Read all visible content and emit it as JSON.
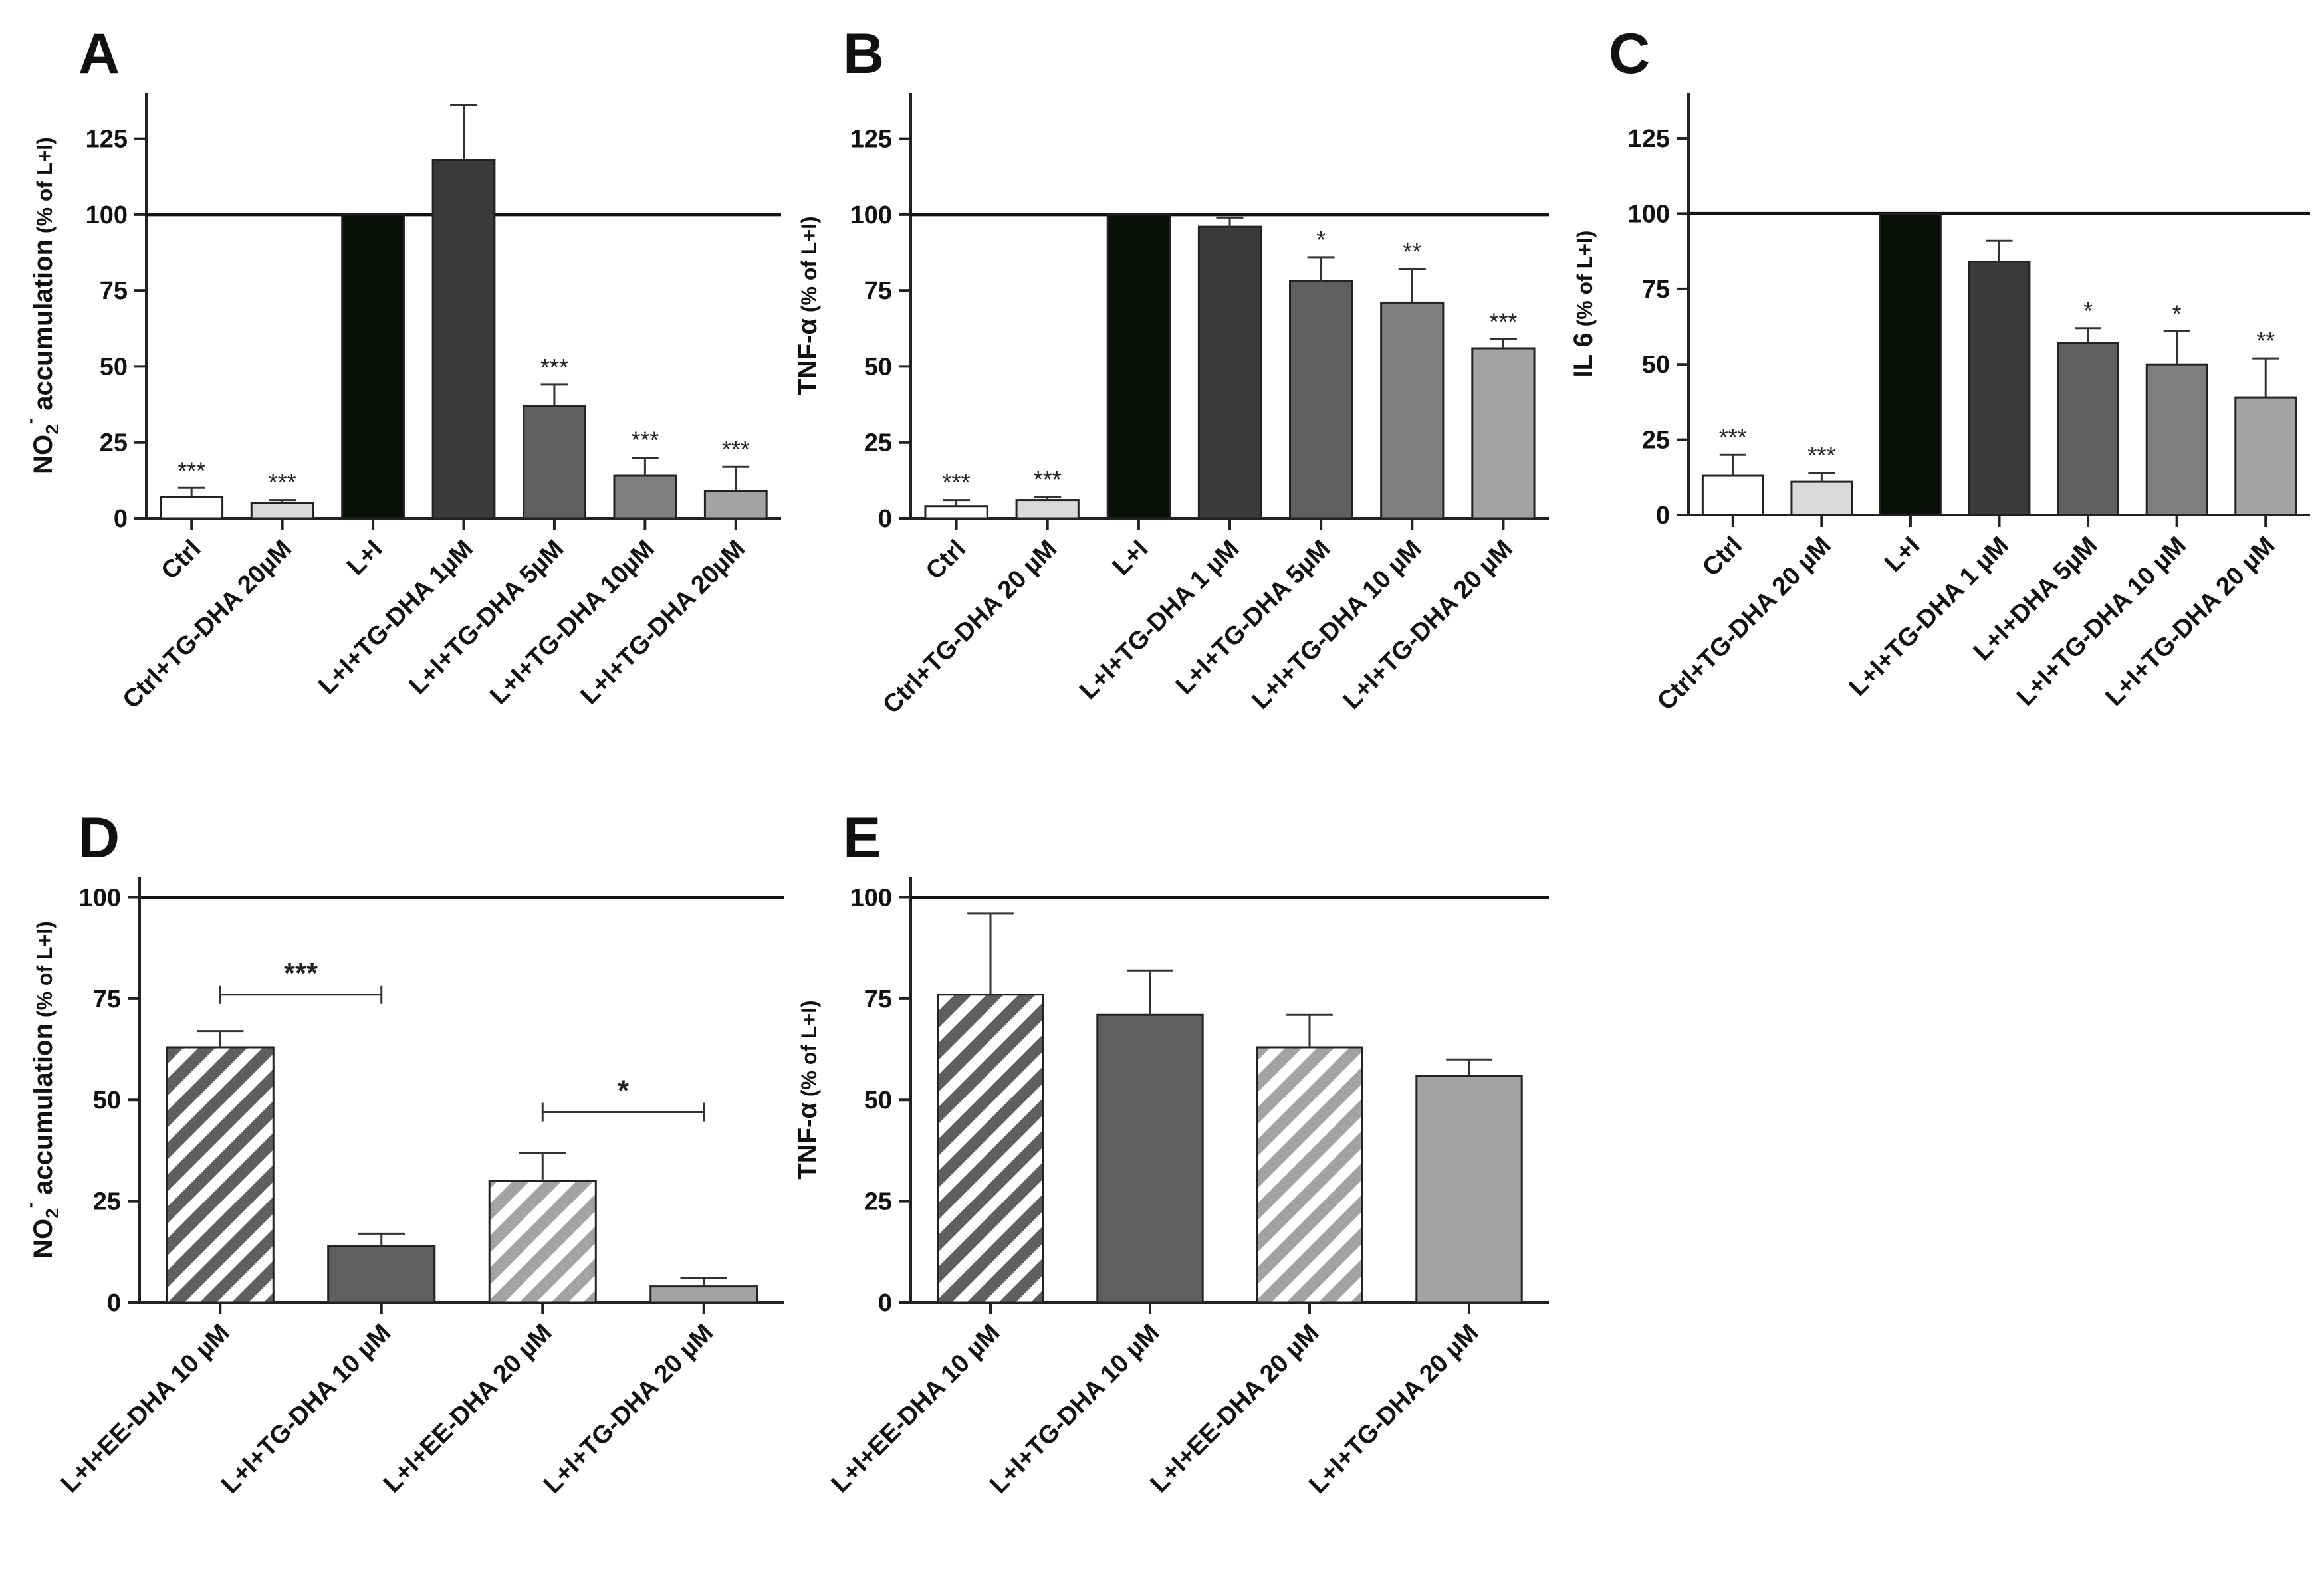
{
  "figure": {
    "palette": {
      "white": "#ffffff",
      "light": "#d9d9d9",
      "black": "#0a0f0a",
      "dark": "#3b3b3b",
      "mid": "#5f5f5f",
      "midlight": "#7f7f7f",
      "lightgray": "#a3a3a3",
      "ee": "#ffffff",
      "hatch_dark": "#5f5f5f",
      "hatch_light": "#a3a3a3",
      "tg_dark": "#5f5f5f",
      "tg_light": "#a3a3a3"
    }
  },
  "chart_data": [
    {
      "id": "A",
      "panel_label": "A",
      "type": "bar",
      "ylabel_main": "NO",
      "ylabel_sub": "2",
      "ylabel_sup": "-",
      "ylabel_rest": " accumulation",
      "ylabel_unit": " (% of L+I)",
      "ylim": [
        0,
        140
      ],
      "yticks": [
        0,
        25,
        50,
        75,
        100,
        125
      ],
      "reference_line": 100,
      "categories": [
        "Ctrl",
        "Ctrl+TG-DHA 20µM",
        "L+I",
        "L+I+TG-DHA 1µM",
        "L+I+TG-DHA 5µM",
        "L+I+TG-DHA 10µM",
        "L+I+TG-DHA 20µM"
      ],
      "values": [
        7,
        5,
        100,
        118,
        37,
        14,
        9
      ],
      "errors": [
        3,
        1,
        0,
        18,
        7,
        6,
        8
      ],
      "fills": [
        "white",
        "light",
        "black",
        "dark",
        "mid",
        "midlight",
        "lightgray"
      ],
      "significance": [
        "***",
        "***",
        "",
        "",
        "***",
        "***",
        "***"
      ]
    },
    {
      "id": "B",
      "panel_label": "B",
      "type": "bar",
      "ylabel_main": "TNF-α",
      "ylabel_unit": "  (% of L+I)",
      "ylim": [
        0,
        140
      ],
      "yticks": [
        0,
        25,
        50,
        75,
        100,
        125
      ],
      "reference_line": 100,
      "categories": [
        "Ctrl",
        "Ctrl+TG-DHA 20 µM",
        "L+I",
        "L+I+TG-DHA 1 µM",
        "L+I+TG-DHA 5µM",
        "L+I+TG-DHA 10 µM",
        "L+I+TG-DHA 20 µM"
      ],
      "values": [
        4,
        6,
        100,
        96,
        78,
        71,
        56
      ],
      "errors": [
        2,
        1,
        0,
        3,
        8,
        11,
        3
      ],
      "fills": [
        "white",
        "light",
        "black",
        "dark",
        "mid",
        "midlight",
        "lightgray"
      ],
      "significance": [
        "***",
        "***",
        "",
        "",
        "*",
        "**",
        "***"
      ]
    },
    {
      "id": "C",
      "panel_label": "C",
      "type": "bar",
      "ylabel_main": "IL 6",
      "ylabel_unit": " (% of L+I)",
      "ylim": [
        0,
        140
      ],
      "yticks": [
        0,
        25,
        50,
        75,
        100,
        125
      ],
      "reference_line": 100,
      "categories": [
        "Ctrl",
        "Ctrl+TG-DHA 20 µM",
        "L+I",
        "L+I+TG-DHA 1 µM",
        "L+I+DHA 5µM",
        "L+I+TG-DHA 10 µM",
        "L+I+TG-DHA 20 µM"
      ],
      "values": [
        13,
        11,
        100,
        84,
        57,
        50,
        39
      ],
      "errors": [
        7,
        3,
        0,
        7,
        5,
        11,
        13
      ],
      "fills": [
        "white",
        "light",
        "black",
        "dark",
        "mid",
        "midlight",
        "lightgray"
      ],
      "significance": [
        "***",
        "***",
        "",
        "",
        "*",
        "*",
        "**"
      ]
    },
    {
      "id": "D",
      "panel_label": "D",
      "type": "bar",
      "ylabel_main": "NO",
      "ylabel_sub": "2",
      "ylabel_sup": "-",
      "ylabel_rest": " accumulation",
      "ylabel_unit": " (% of L+I)",
      "ylim": [
        0,
        105
      ],
      "yticks": [
        0,
        25,
        50,
        75,
        100
      ],
      "reference_line": 100,
      "categories": [
        "L+I+EE-DHA 10 µM",
        "L+I+TG-DHA 10 µM",
        "L+I+EE-DHA 20 µM",
        "L+I+TG-DHA 20 µM"
      ],
      "values": [
        63,
        14,
        30,
        4
      ],
      "errors": [
        4,
        3,
        7,
        2
      ],
      "fills": [
        "hatch_dark",
        "tg_dark",
        "hatch_light",
        "tg_light"
      ],
      "significance": [
        "",
        "",
        "",
        ""
      ],
      "brackets": [
        {
          "from": 0,
          "to": 1,
          "value": 76,
          "label": "***"
        },
        {
          "from": 2,
          "to": 3,
          "value": 47,
          "label": "*"
        }
      ]
    },
    {
      "id": "E",
      "panel_label": "E",
      "type": "bar",
      "ylabel_main": "TNF-α",
      "ylabel_unit": "  (% of L+I)",
      "ylim": [
        0,
        105
      ],
      "yticks": [
        0,
        25,
        50,
        75,
        100
      ],
      "reference_line": 100,
      "categories": [
        "L+I+EE-DHA 10 µM",
        "L+I+TG-DHA 10 µM",
        "L+I+EE-DHA 20 µM",
        "L+I+TG-DHA 20 µM"
      ],
      "values": [
        76,
        71,
        63,
        56
      ],
      "errors": [
        20,
        11,
        8,
        4
      ],
      "fills": [
        "hatch_dark",
        "tg_dark",
        "hatch_light",
        "tg_light"
      ],
      "significance": [
        "",
        "",
        "",
        ""
      ]
    }
  ]
}
